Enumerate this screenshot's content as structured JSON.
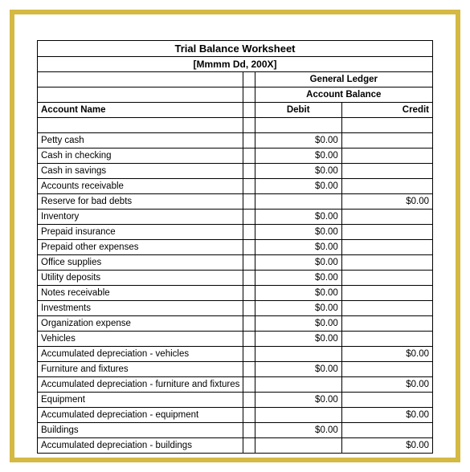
{
  "frame_color": "#d4b943",
  "title": "Trial Balance Worksheet",
  "subtitle": "[Mmmm Dd, 200X]",
  "headers": {
    "account_name": "Account Name",
    "general_ledger": "General Ledger",
    "account_balance": "Account Balance",
    "debit": "Debit",
    "credit": "Credit"
  },
  "rows": [
    {
      "name": "Petty cash",
      "debit": "$0.00",
      "credit": ""
    },
    {
      "name": "Cash in checking",
      "debit": "$0.00",
      "credit": ""
    },
    {
      "name": "Cash in savings",
      "debit": "$0.00",
      "credit": ""
    },
    {
      "name": "Accounts receivable",
      "debit": "$0.00",
      "credit": ""
    },
    {
      "name": "Reserve for bad debts",
      "debit": "",
      "credit": "$0.00"
    },
    {
      "name": "Inventory",
      "debit": "$0.00",
      "credit": ""
    },
    {
      "name": "Prepaid insurance",
      "debit": "$0.00",
      "credit": ""
    },
    {
      "name": "Prepaid other expenses",
      "debit": "$0.00",
      "credit": ""
    },
    {
      "name": "Office supplies",
      "debit": "$0.00",
      "credit": ""
    },
    {
      "name": "Utility deposits",
      "debit": "$0.00",
      "credit": ""
    },
    {
      "name": "Notes receivable",
      "debit": "$0.00",
      "credit": ""
    },
    {
      "name": "Investments",
      "debit": "$0.00",
      "credit": ""
    },
    {
      "name": "Organization expense",
      "debit": "$0.00",
      "credit": ""
    },
    {
      "name": "Vehicles",
      "debit": "$0.00",
      "credit": ""
    },
    {
      "name": "Accumulated depreciation - vehicles",
      "debit": "",
      "credit": "$0.00"
    },
    {
      "name": "Furniture and fixtures",
      "debit": "$0.00",
      "credit": ""
    },
    {
      "name": "Accumulated depreciation - furniture and fixtures",
      "debit": "",
      "credit": "$0.00"
    },
    {
      "name": "Equipment",
      "debit": "$0.00",
      "credit": ""
    },
    {
      "name": "Accumulated depreciation - equipment",
      "debit": "",
      "credit": "$0.00"
    },
    {
      "name": "Buildings",
      "debit": "$0.00",
      "credit": ""
    },
    {
      "name": "Accumulated depreciation - buildings",
      "debit": "",
      "credit": "$0.00"
    }
  ]
}
